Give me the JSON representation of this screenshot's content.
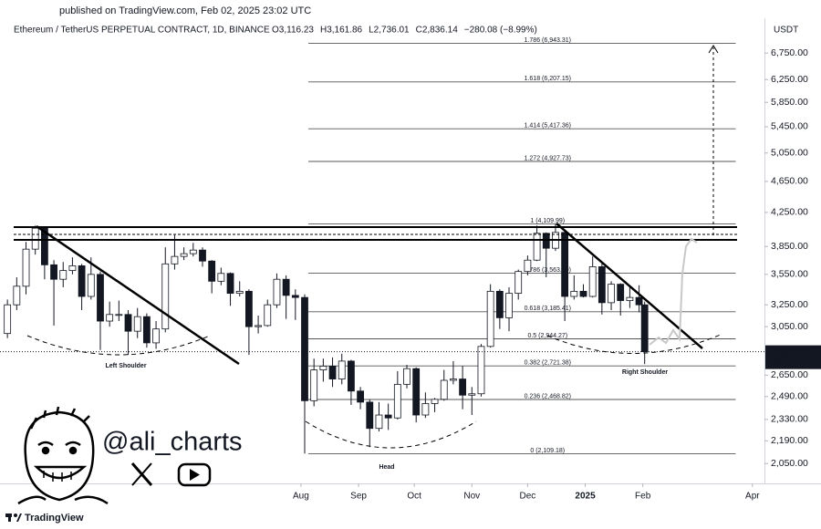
{
  "published": "published on TradingView.com, Feb 02, 2025 23:02 UTC",
  "chart_data": {
    "type": "candlestick",
    "title": "Ethereum / TetherUS PERPETUAL CONTRACT, 1D, BINANCE",
    "ohlc_labels": [
      "O3,116.23",
      "H3,161.86",
      "L2,736.01",
      "C2,836.14",
      "−280.08 (−8.99%)"
    ],
    "y_unit": "USDT",
    "log_scale": true,
    "up_color": "#ffffff",
    "down_color": "#131722",
    "outline_color": "#131722",
    "x": [
      "2024-02-25",
      "2024-03-01",
      "2024-03-06",
      "2024-03-11",
      "2024-03-16",
      "2024-03-21",
      "2024-03-26",
      "2024-03-31",
      "2024-04-05",
      "2024-04-10",
      "2024-04-15",
      "2024-04-20",
      "2024-04-25",
      "2024-04-30",
      "2024-05-05",
      "2024-05-10",
      "2024-05-15",
      "2024-05-20",
      "2024-05-25",
      "2024-05-30",
      "2024-06-04",
      "2024-06-09",
      "2024-06-14",
      "2024-06-19",
      "2024-06-24",
      "2024-06-29",
      "2024-07-04",
      "2024-07-09",
      "2024-07-14",
      "2024-07-19",
      "2024-07-24",
      "2024-07-29",
      "2024-08-03",
      "2024-08-08",
      "2024-08-13",
      "2024-08-18",
      "2024-08-23",
      "2024-08-28",
      "2024-09-02",
      "2024-09-07",
      "2024-09-12",
      "2024-09-17",
      "2024-09-22",
      "2024-09-27",
      "2024-10-02",
      "2024-10-07",
      "2024-10-12",
      "2024-10-17",
      "2024-10-22",
      "2024-10-27",
      "2024-11-01",
      "2024-11-06",
      "2024-11-11",
      "2024-11-16",
      "2024-11-21",
      "2024-11-26",
      "2024-12-01",
      "2024-12-06",
      "2024-12-11",
      "2024-12-16",
      "2024-12-21",
      "2024-12-26",
      "2024-12-31",
      "2025-01-05",
      "2025-01-10",
      "2025-01-15",
      "2025-01-20",
      "2025-01-25",
      "2025-01-30",
      "2025-02-02"
    ],
    "open": [
      2990,
      3250,
      3430,
      3820,
      4060,
      3650,
      3500,
      3590,
      3640,
      3330,
      3550,
      3100,
      3160,
      3160,
      3010,
      3140,
      2910,
      3030,
      3660,
      3740,
      3770,
      3810,
      3690,
      3480,
      3560,
      3360,
      3380,
      3050,
      3060,
      3250,
      3500,
      3340,
      3320,
      2460,
      2690,
      2720,
      2620,
      2760,
      2530,
      2450,
      2270,
      2360,
      2340,
      2580,
      2700,
      2360,
      2440,
      2470,
      2610,
      2620,
      2500,
      2510,
      2880,
      3380,
      3130,
      3360,
      3580,
      3700,
      4000,
      3830,
      4010,
      3330,
      3380,
      3330,
      3630,
      3270,
      3450,
      3290,
      3320,
      3250
    ],
    "high": [
      3300,
      3520,
      3900,
      4090,
      4080,
      3700,
      3680,
      3730,
      3660,
      3730,
      3580,
      3280,
      3290,
      3200,
      3220,
      3170,
      3100,
      3840,
      3980,
      3840,
      3890,
      3840,
      3700,
      3620,
      3570,
      3480,
      3400,
      3150,
      3300,
      3560,
      3540,
      3400,
      3350,
      2780,
      2780,
      2790,
      2820,
      2770,
      2560,
      2470,
      2450,
      2440,
      2680,
      2730,
      2710,
      2520,
      2480,
      2690,
      2760,
      2720,
      2560,
      2900,
      3450,
      3400,
      3420,
      3600,
      3750,
      4090,
      4010,
      4110,
      4020,
      3540,
      3450,
      3740,
      3680,
      3480,
      3460,
      3420,
      3440,
      3280
    ],
    "low": [
      2950,
      3200,
      3350,
      3760,
      3500,
      3060,
      3420,
      3550,
      3200,
      3300,
      2850,
      3050,
      3100,
      2810,
      2950,
      2870,
      2860,
      3000,
      3600,
      3700,
      3740,
      3630,
      3360,
      3440,
      3240,
      3330,
      2810,
      2990,
      3050,
      3220,
      3120,
      3110,
      2110,
      2420,
      2600,
      2560,
      2580,
      2430,
      2400,
      2150,
      2250,
      2260,
      2330,
      2550,
      2310,
      2340,
      2380,
      2460,
      2580,
      2400,
      2360,
      2490,
      2870,
      3030,
      3010,
      3300,
      3540,
      3690,
      3520,
      3800,
      3100,
      3300,
      3320,
      3320,
      3160,
      3200,
      3150,
      3220,
      3180,
      2736.01
    ],
    "close": [
      3250,
      3430,
      3820,
      4060,
      3650,
      3500,
      3590,
      3640,
      3330,
      3550,
      3100,
      3160,
      3160,
      3010,
      3140,
      2910,
      3030,
      3660,
      3740,
      3770,
      3810,
      3690,
      3480,
      3560,
      3360,
      3380,
      3050,
      3060,
      3250,
      3500,
      3340,
      3320,
      2460,
      2690,
      2720,
      2620,
      2760,
      2530,
      2450,
      2270,
      2360,
      2340,
      2580,
      2700,
      2360,
      2440,
      2470,
      2610,
      2620,
      2500,
      2510,
      2880,
      3380,
      3130,
      3360,
      3580,
      3700,
      4000,
      3830,
      4010,
      3330,
      3380,
      3330,
      3630,
      3270,
      3450,
      3290,
      3320,
      3250,
      2836.14
    ],
    "xlim": [
      "2024-02-21",
      "2025-04-06"
    ],
    "xticks": [
      {
        "value": "2024-08-01",
        "label": "Aug"
      },
      {
        "value": "2024-09-01",
        "label": "Sep"
      },
      {
        "value": "2024-10-01",
        "label": "Oct"
      },
      {
        "value": "2024-11-01",
        "label": "Nov"
      },
      {
        "value": "2024-12-01",
        "label": "Dec"
      },
      {
        "value": "2025-01-01",
        "label": "2025"
      },
      {
        "value": "2025-02-01",
        "label": "Feb"
      },
      {
        "value": "2025-04-01",
        "label": "Apr"
      }
    ],
    "ylim": [
      1935,
      7370
    ],
    "yticks": [
      {
        "value": 6750,
        "label": "6,750.00"
      },
      {
        "value": 6250,
        "label": "6,250.00"
      },
      {
        "value": 5850,
        "label": "5,850.00"
      },
      {
        "value": 5450,
        "label": "5,450.00"
      },
      {
        "value": 5050,
        "label": "5,050.00"
      },
      {
        "value": 4650,
        "label": "4,650.00"
      },
      {
        "value": 4250,
        "label": "4,250.00"
      },
      {
        "value": 3850,
        "label": "3,850.00"
      },
      {
        "value": 3550,
        "label": "3,550.00"
      },
      {
        "value": 3250,
        "label": "3,250.00"
      },
      {
        "value": 3050,
        "label": "3,050.00"
      },
      {
        "value": 2650,
        "label": "2,650.00"
      },
      {
        "value": 2490,
        "label": "2,490.00"
      },
      {
        "value": 2330,
        "label": "2,330.00"
      },
      {
        "value": 2190,
        "label": "2,190.00"
      },
      {
        "value": 2050,
        "label": "2,050.00"
      }
    ],
    "fib_levels": [
      {
        "value": 6943.31,
        "label": "1.786 (6,943.31)"
      },
      {
        "value": 6207.15,
        "label": "1.618 (6,207.15)"
      },
      {
        "value": 5417.36,
        "label": "1.414 (5,417.36)"
      },
      {
        "value": 4927.73,
        "label": "1.272 (4,927.73)"
      },
      {
        "value": 4109.99,
        "label": "1 (4,109.99)"
      },
      {
        "value": 3563.19,
        "label": "0.786 (3,563.19)"
      },
      {
        "value": 3185.41,
        "label": "0.618 (3,185.41)"
      },
      {
        "value": 2944.27,
        "label": "0.5 (2,944.27)"
      },
      {
        "value": 2721.38,
        "label": "0.382 (2,721.38)"
      },
      {
        "value": 2468.82,
        "label": "0.236 (2,468.82)"
      },
      {
        "value": 2109.18,
        "label": "0 (2,109.18)"
      }
    ],
    "fib_range": [
      "2024-08-05",
      "2025-03-23"
    ],
    "last_price": {
      "value": 2836.14,
      "label": "2,836.14"
    },
    "countdown": "57:21",
    "annotations": [
      "Left Shoulder",
      "Head",
      "Right Shoulder"
    ]
  },
  "branding": {
    "handle": "@ali_charts",
    "footer": "TradingView"
  }
}
